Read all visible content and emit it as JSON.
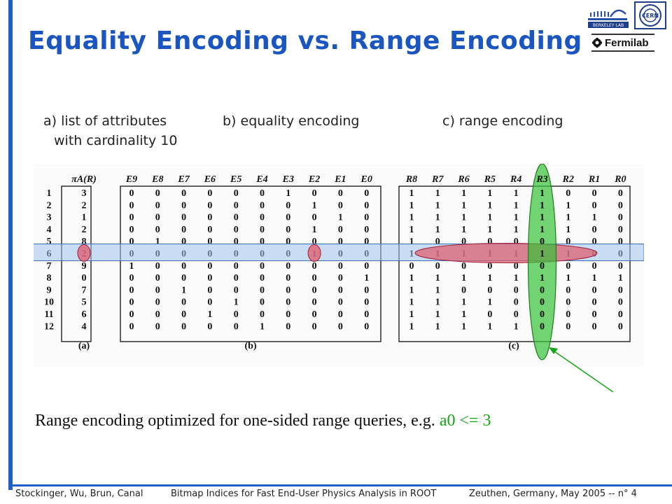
{
  "title": "Equality Encoding vs. Range Encoding",
  "logos": {
    "lbl_text": "BERKELEY LAB",
    "cern_text": "CERN",
    "fermilab_text": "Fermilab"
  },
  "captions": {
    "a_line1": "a) list of attributes",
    "a_line2": "with cardinality 10",
    "b": "b) equality encoding",
    "c": "c) range encoding"
  },
  "figure": {
    "attr_header": "πA(R)",
    "row_ids": [
      "1",
      "2",
      "3",
      "4",
      "5",
      "6",
      "7",
      "8",
      "9",
      "10",
      "11",
      "12"
    ],
    "values": [
      3,
      2,
      1,
      2,
      8,
      2,
      9,
      0,
      7,
      5,
      6,
      4
    ],
    "eq_headers": [
      "E9",
      "E8",
      "E7",
      "E6",
      "E5",
      "E4",
      "E3",
      "E2",
      "E1",
      "E0"
    ],
    "range_headers": [
      "R8",
      "R7",
      "R6",
      "R5",
      "R4",
      "R3",
      "R2",
      "R1",
      "R0"
    ],
    "panel_labels": [
      "(a)",
      "(b)",
      "(c)"
    ],
    "highlight_row": 6,
    "highlight_range_column": "R3"
  },
  "bottom_text": {
    "main": "Range encoding optimized for one-sided range queries, e.g. ",
    "query": "a0 <= 3"
  },
  "footer": {
    "authors": "Stockinger, Wu, Brun, Canal",
    "talk_title": "Bitmap Indices for Fast End-User Physics Analysis in ROOT",
    "conference": "Zeuthen, Germany, May 2005  -- n° 4"
  },
  "colors": {
    "accent_blue": "#1a55c0",
    "highlight_green": "#36c236",
    "highlight_red": "#e05a6a",
    "row_band": "#9ec3ec"
  }
}
